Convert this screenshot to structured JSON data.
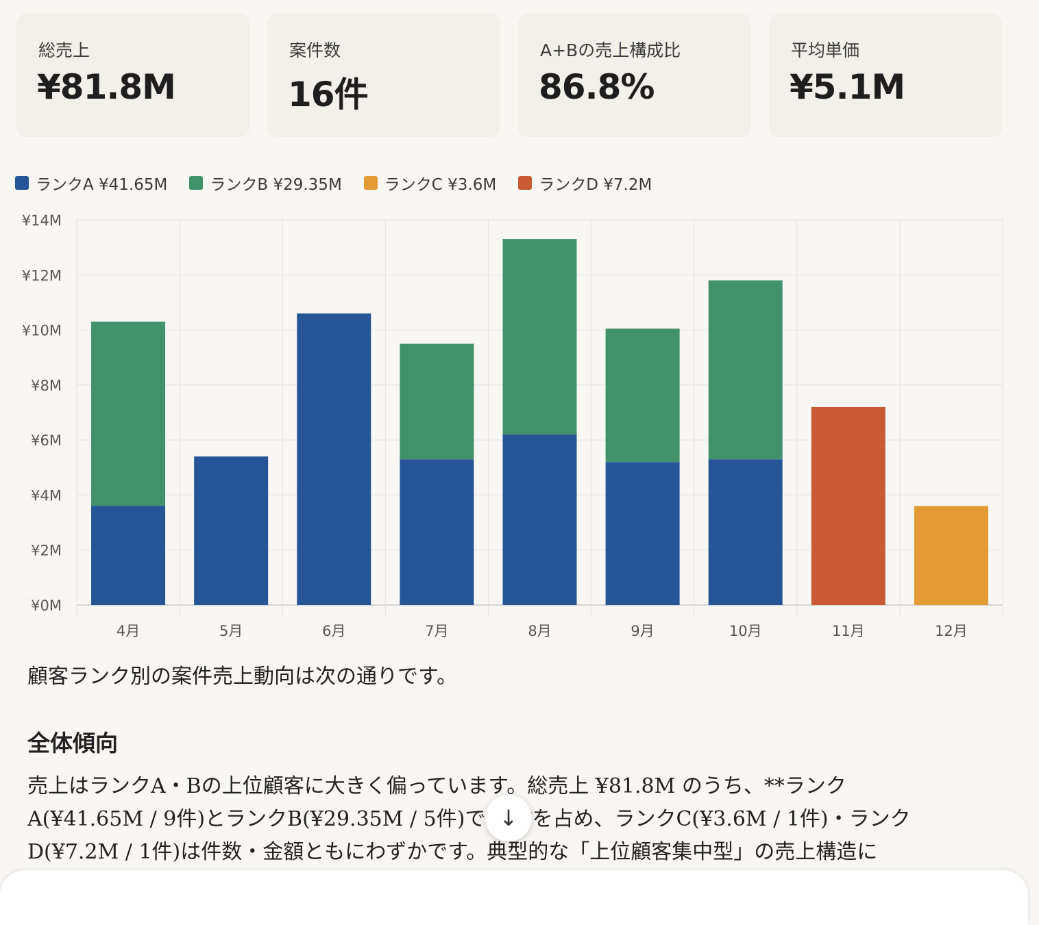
{
  "kpi": [
    {
      "label": "総売上",
      "value": "¥81.8M"
    },
    {
      "label": "案件数",
      "value": "16件"
    },
    {
      "label": "A+Bの売上構成比",
      "value": "86.8%"
    },
    {
      "label": "平均単価",
      "value": "¥5.1M"
    }
  ],
  "legend": [
    {
      "label": "ランクA ¥41.65M",
      "color": "#255596"
    },
    {
      "label": "ランクB ¥29.35M",
      "color": "#41916b"
    },
    {
      "label": "ランクC ¥3.6M",
      "color": "#e49b35"
    },
    {
      "label": "ランクD ¥7.2M",
      "color": "#c85b33"
    }
  ],
  "chart_data": {
    "type": "bar",
    "stacked": true,
    "categories": [
      "4月",
      "5月",
      "6月",
      "7月",
      "8月",
      "9月",
      "10月",
      "11月",
      "12月"
    ],
    "series": [
      {
        "name": "ランクA",
        "color": "#255596",
        "values": [
          3.6,
          5.4,
          10.6,
          5.3,
          6.2,
          5.2,
          5.3,
          0,
          0
        ]
      },
      {
        "name": "ランクB",
        "color": "#41916b",
        "values": [
          6.7,
          0,
          0,
          4.2,
          7.1,
          4.85,
          6.5,
          0,
          0
        ]
      },
      {
        "name": "ランクC",
        "color": "#e49b35",
        "values": [
          0,
          0,
          0,
          0,
          0,
          0,
          0,
          0,
          3.6
        ]
      },
      {
        "name": "ランクD",
        "color": "#c85b33",
        "values": [
          0,
          0,
          0,
          0,
          0,
          0,
          0,
          7.2,
          0
        ]
      }
    ],
    "ylim": [
      0,
      14
    ],
    "yticks": [
      0,
      2,
      4,
      6,
      8,
      10,
      12,
      14
    ],
    "ytick_labels": [
      "¥0M",
      "¥2M",
      "¥4M",
      "¥6M",
      "¥8M",
      "¥10M",
      "¥12M",
      "¥14M"
    ],
    "grid": true,
    "legend_position": "top-left"
  },
  "content": {
    "intro": "顧客ランク別の案件売上動向は次の通りです。",
    "heading": "全体傾向",
    "paragraph": "売上はランクA・Bの上位顧客に大きく偏っています。総売上 ¥81.8M のうち、**ランクA(¥41.65M / 9件)とランクB(¥29.35M / 5件)で %**を占め、ランクC(¥3.6M / 1件)・ランクD(¥7.2M / 1件)は件数・金額ともにわずかです。典型的な「上位顧客集中型」の売上構造に"
  },
  "scroll_button": {
    "icon": "arrow-down-icon",
    "glyph": "↓"
  }
}
